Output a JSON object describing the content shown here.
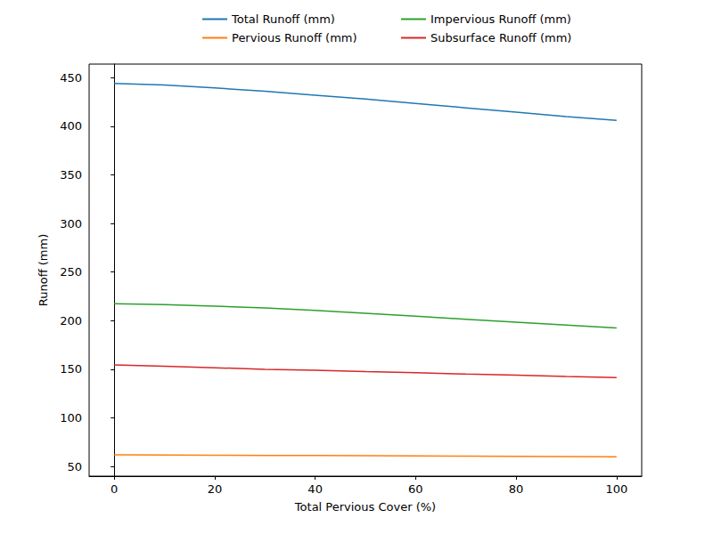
{
  "chart_data": {
    "type": "line",
    "x_label": "Total Pervious Cover (%)",
    "y_label": "Runoff (mm)",
    "x": [
      0,
      10,
      20,
      30,
      40,
      50,
      60,
      70,
      80,
      90,
      100
    ],
    "series": [
      {
        "name": "Total Runoff (mm)",
        "color": "#1f77b4",
        "values": [
          444,
          442.5,
          439.5,
          436,
          432,
          428,
          423.5,
          419,
          414.5,
          410,
          406
        ]
      },
      {
        "name": "Pervious Runoff (mm)",
        "color": "#ff7f0e",
        "values": [
          62,
          61.8,
          61.6,
          61.4,
          61.2,
          61,
          60.8,
          60.6,
          60.4,
          60.2,
          60
        ]
      },
      {
        "name": "Impervious Runoff (mm)",
        "color": "#2ca02c",
        "values": [
          217.5,
          216.5,
          215,
          213,
          210.5,
          207.5,
          204.5,
          201.5,
          198.5,
          195.5,
          192.5
        ]
      },
      {
        "name": "Subsurface Runoff (mm)",
        "color": "#d62728",
        "values": [
          154.5,
          153,
          151.5,
          150,
          149,
          147.5,
          146.5,
          145,
          144,
          142.5,
          141.5
        ]
      }
    ],
    "xlim": [
      -5,
      105
    ],
    "xticks": [
      0,
      20,
      40,
      60,
      80,
      100
    ],
    "ylim": [
      40,
      464
    ],
    "yticks": [
      50,
      100,
      150,
      200,
      250,
      300,
      350,
      400,
      450
    ],
    "grid": false,
    "legend": "top"
  }
}
